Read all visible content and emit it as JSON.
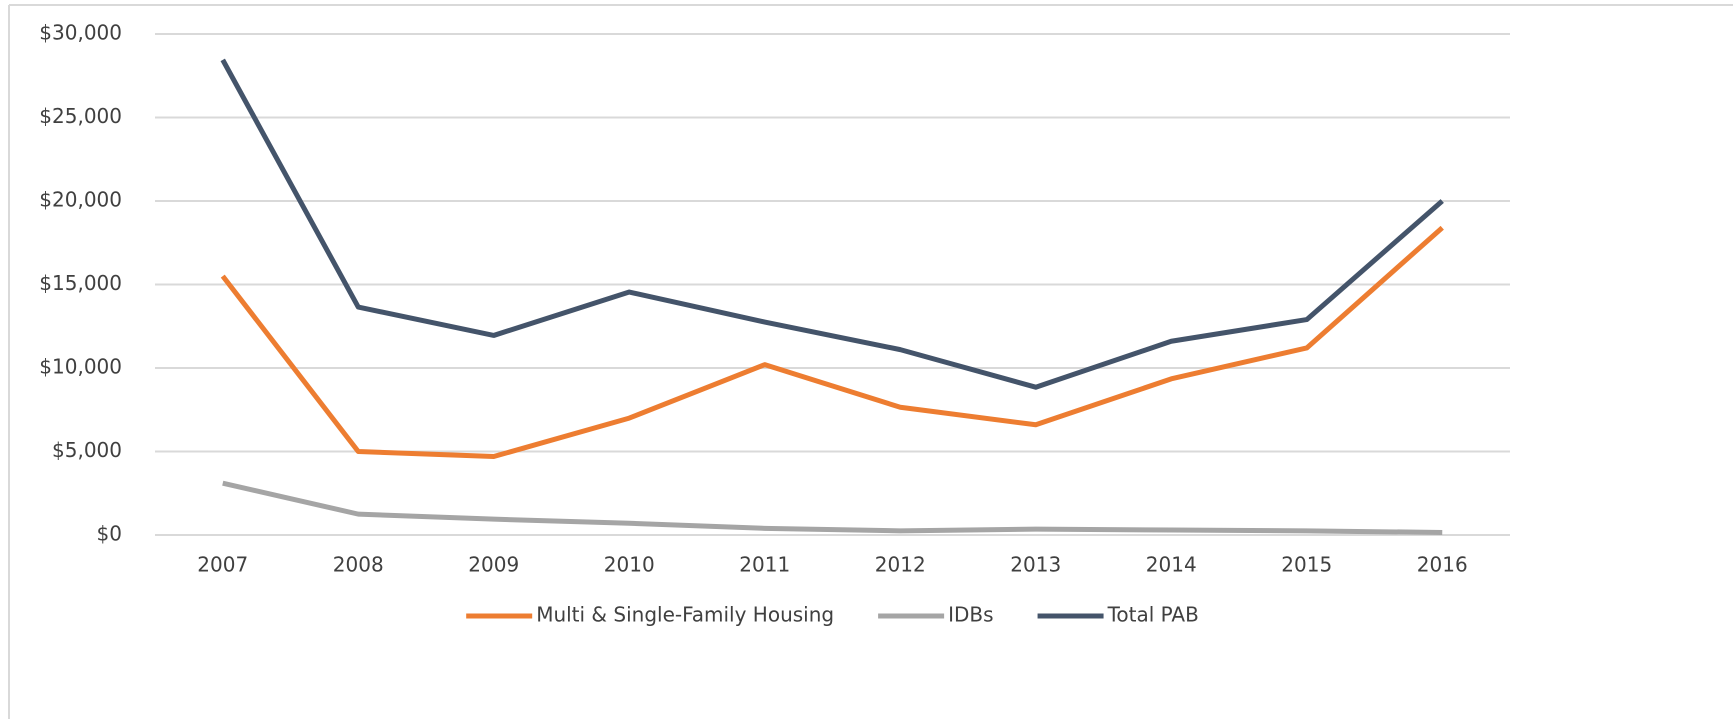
{
  "chart_data": {
    "type": "line",
    "categories": [
      "2007",
      "2008",
      "2009",
      "2010",
      "2011",
      "2012",
      "2013",
      "2014",
      "2015",
      "2016"
    ],
    "series": [
      {
        "name": "Multi & Single-Family Housing",
        "color": "#ed7d31",
        "values": [
          15500,
          5000,
          4700,
          7000,
          10200,
          7650,
          6600,
          9350,
          11200,
          18400
        ]
      },
      {
        "name": "IDBs",
        "color": "#a5a5a5",
        "values": [
          3100,
          1250,
          950,
          700,
          400,
          250,
          350,
          300,
          250,
          150
        ]
      },
      {
        "name": "Total PAB",
        "color": "#44546a",
        "values": [
          28450,
          13650,
          11950,
          14550,
          12750,
          11100,
          8850,
          11600,
          12900,
          20000
        ]
      }
    ],
    "ylim": [
      0,
      30000
    ],
    "yticks": [
      {
        "value": 0,
        "label": "$0"
      },
      {
        "value": 5000,
        "label": "$5,000"
      },
      {
        "value": 10000,
        "label": "$10,000"
      },
      {
        "value": 15000,
        "label": "$15,000"
      },
      {
        "value": 20000,
        "label": "$20,000"
      },
      {
        "value": 25000,
        "label": "$25,000"
      },
      {
        "value": 30000,
        "label": "$30,000"
      }
    ],
    "grid": true,
    "legend": "bottom"
  }
}
